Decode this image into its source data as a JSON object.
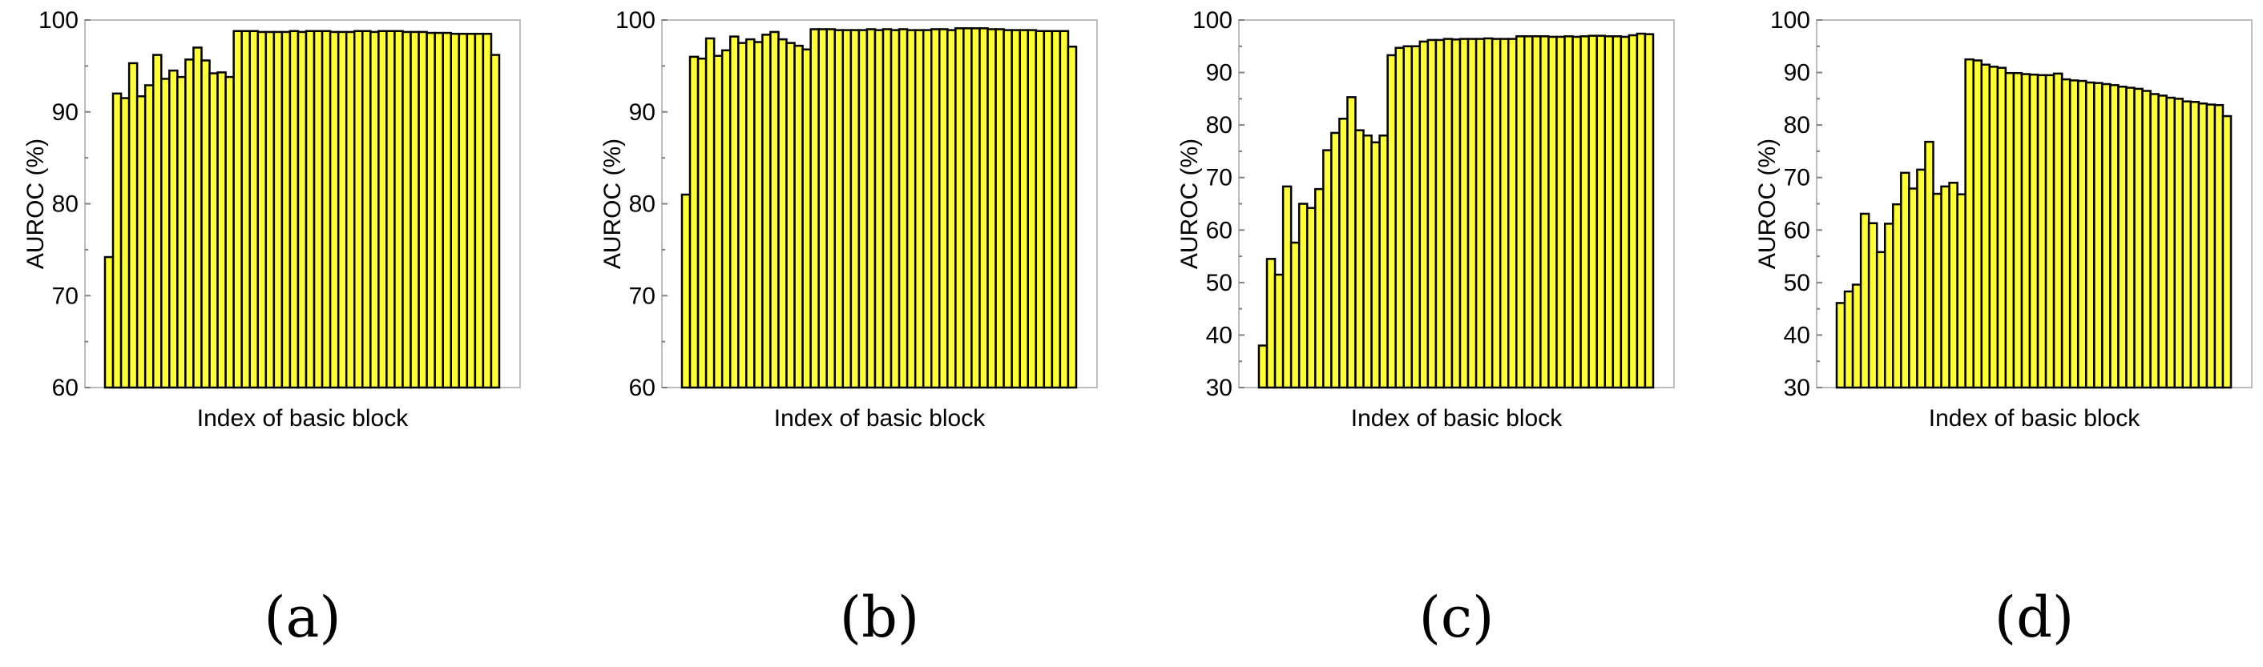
{
  "colors": {
    "bar_fill": "#ffff33",
    "bar_stroke": "#000000",
    "axes_frame": "#bdbdbd",
    "text": "#000000"
  },
  "chart_data": [
    {
      "type": "bar",
      "caption": "(a)",
      "xlabel": "Index of basic block",
      "ylabel": "AUROC (%)",
      "ylim": [
        60,
        100
      ],
      "yticks": [
        60,
        70,
        80,
        90,
        100
      ],
      "grid": false,
      "legend": "none",
      "values": [
        74.2,
        92.0,
        91.5,
        95.3,
        91.7,
        92.9,
        96.2,
        93.6,
        94.5,
        93.8,
        95.7,
        97.0,
        95.6,
        94.2,
        94.3,
        93.8,
        98.8,
        98.8,
        98.8,
        98.7,
        98.7,
        98.7,
        98.7,
        98.8,
        98.7,
        98.8,
        98.8,
        98.8,
        98.7,
        98.7,
        98.7,
        98.8,
        98.8,
        98.7,
        98.8,
        98.8,
        98.8,
        98.7,
        98.7,
        98.7,
        98.6,
        98.6,
        98.6,
        98.5,
        98.5,
        98.5,
        98.5,
        98.5,
        96.2
      ]
    },
    {
      "type": "bar",
      "caption": "(b)",
      "xlabel": "Index of basic block",
      "ylabel": "AUROC (%)",
      "ylim": [
        60,
        100
      ],
      "yticks": [
        60,
        70,
        80,
        90,
        100
      ],
      "grid": false,
      "legend": "none",
      "values": [
        81.0,
        96.0,
        95.8,
        98.0,
        96.1,
        96.7,
        98.2,
        97.5,
        97.9,
        97.6,
        98.4,
        98.7,
        97.9,
        97.5,
        97.2,
        96.8,
        99.0,
        99.0,
        99.0,
        98.9,
        98.9,
        98.9,
        98.9,
        99.0,
        98.9,
        99.0,
        98.9,
        99.0,
        98.9,
        98.9,
        98.9,
        99.0,
        99.0,
        98.9,
        99.1,
        99.1,
        99.1,
        99.1,
        99.0,
        99.0,
        98.9,
        98.9,
        98.9,
        98.9,
        98.8,
        98.8,
        98.8,
        98.8,
        97.1
      ]
    },
    {
      "type": "bar",
      "caption": "(c)",
      "xlabel": "Index of basic block",
      "ylabel": "AUROC (%)",
      "ylim": [
        30,
        100
      ],
      "yticks": [
        30,
        40,
        50,
        60,
        70,
        80,
        90,
        100
      ],
      "grid": false,
      "legend": "none",
      "values": [
        38.0,
        54.5,
        51.5,
        68.3,
        57.6,
        65.0,
        64.2,
        67.8,
        75.2,
        78.5,
        81.2,
        85.3,
        79.0,
        78.0,
        76.7,
        78.0,
        93.3,
        94.7,
        95.0,
        95.0,
        95.9,
        96.2,
        96.2,
        96.4,
        96.3,
        96.4,
        96.4,
        96.4,
        96.5,
        96.4,
        96.4,
        96.4,
        96.9,
        96.9,
        96.9,
        96.9,
        96.8,
        96.8,
        96.9,
        96.8,
        96.9,
        97.0,
        97.0,
        96.9,
        96.9,
        96.8,
        97.1,
        97.4,
        97.3
      ]
    },
    {
      "type": "bar",
      "caption": "(d)",
      "xlabel": "Index of basic block",
      "ylabel": "AUROC (%)",
      "ylim": [
        30,
        100
      ],
      "yticks": [
        30,
        40,
        50,
        60,
        70,
        80,
        90,
        100
      ],
      "grid": false,
      "legend": "none",
      "values": [
        46.1,
        48.3,
        49.6,
        63.1,
        61.3,
        55.8,
        61.2,
        64.9,
        70.9,
        67.9,
        71.5,
        76.8,
        66.9,
        68.3,
        69.0,
        66.8,
        92.5,
        92.3,
        91.5,
        91.1,
        90.9,
        89.9,
        89.9,
        89.7,
        89.6,
        89.5,
        89.5,
        89.8,
        88.7,
        88.5,
        88.4,
        88.1,
        88.0,
        87.8,
        87.6,
        87.3,
        87.1,
        86.9,
        86.5,
        85.9,
        85.6,
        85.2,
        85.0,
        84.5,
        84.4,
        84.1,
        83.9,
        83.8,
        81.7
      ]
    }
  ]
}
